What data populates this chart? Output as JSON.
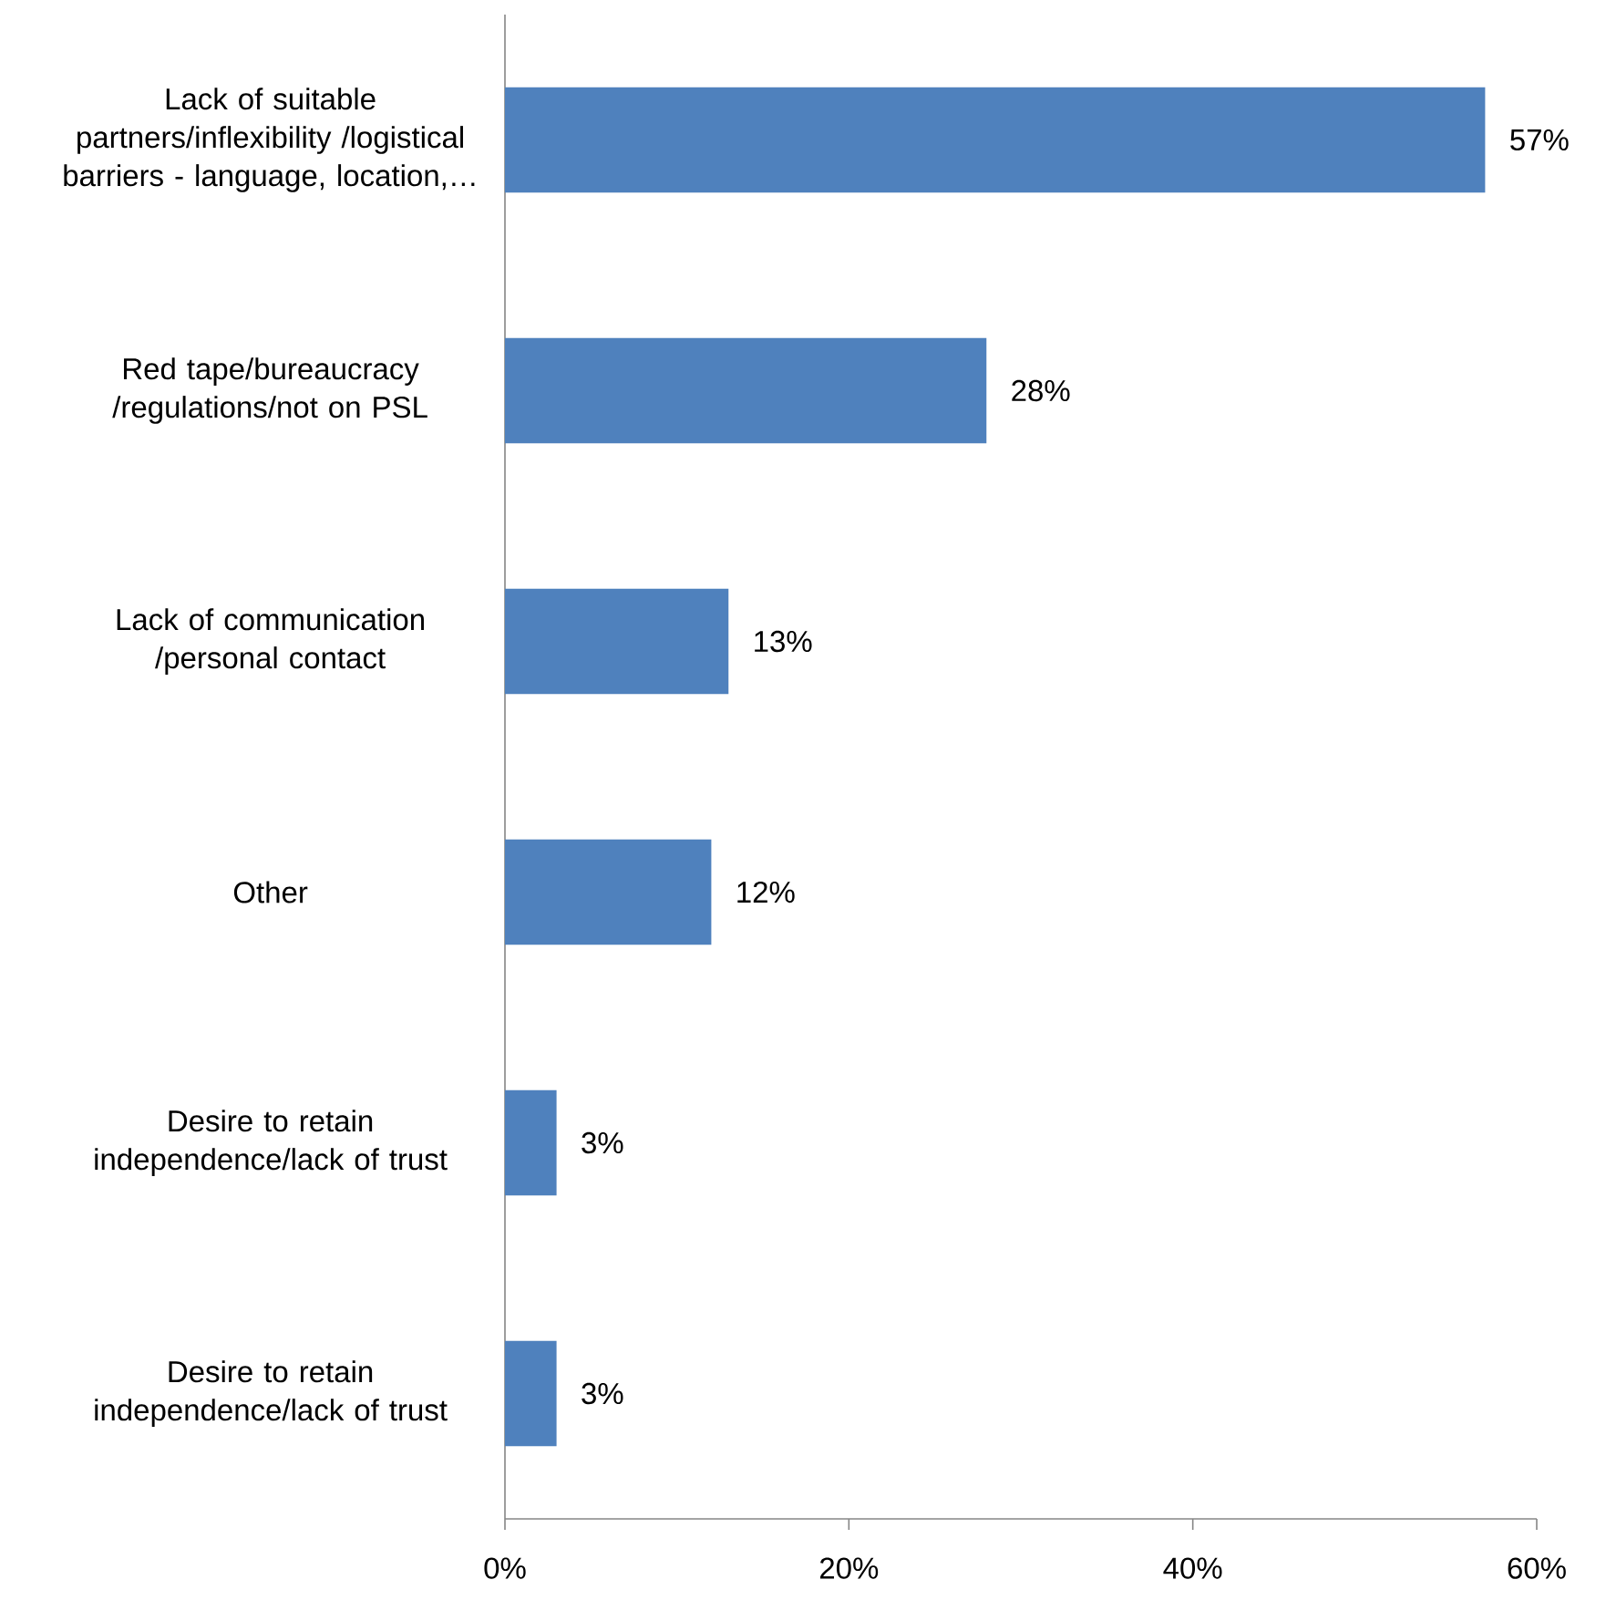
{
  "chart_data": {
    "type": "bar",
    "orientation": "horizontal",
    "categories": [
      "Lack of suitable partners/inflexibility /logistical barriers - language, location,…",
      "Red tape/bureaucracy /regulations/not on PSL",
      "Lack of communication /personal contact",
      "Other",
      "Desire to retain independence/lack of trust",
      "Desire to retain independence/lack of trust"
    ],
    "values": [
      57,
      28,
      13,
      12,
      3,
      3
    ],
    "value_labels": [
      "57%",
      "28%",
      "13%",
      "12%",
      "3%",
      "3%"
    ],
    "color": "#4f81bd",
    "xlim": [
      0,
      60
    ],
    "xticks": [
      {
        "value": 0,
        "label": "0%"
      },
      {
        "value": 20,
        "label": "20%"
      },
      {
        "value": 40,
        "label": "40%"
      },
      {
        "value": 60,
        "label": "60%"
      }
    ],
    "grid": false
  }
}
